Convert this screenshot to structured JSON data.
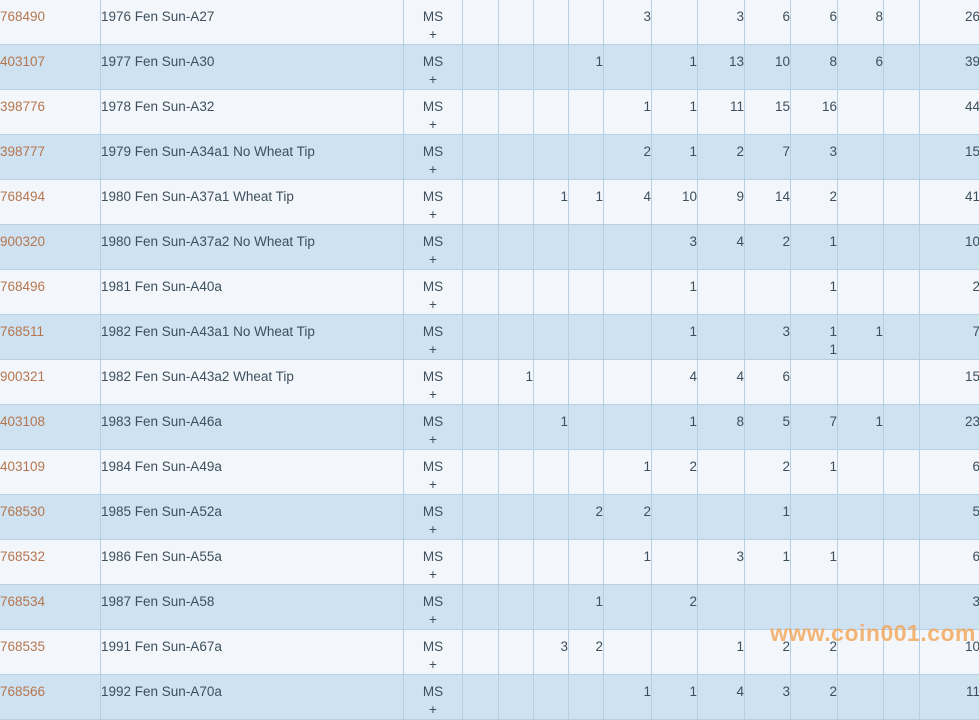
{
  "page": {
    "watermark_text": "www.coin001.com"
  },
  "colors": {
    "row_light_bg": "#f3f7fb",
    "row_dark_bg": "#cfe2f1",
    "grid_line": "#b7cfe3",
    "cert_link": "#b5764f",
    "body_text": "#3d4f5d",
    "watermark": "#f3a455"
  },
  "table": {
    "designation_label": "MS",
    "plus_label": "+",
    "grade_column_count": 11,
    "rows": [
      {
        "id": "768490",
        "description": "1976 Fen Sun-A27",
        "values": [
          "",
          "",
          "",
          "",
          "3",
          "",
          "3",
          "6",
          "6",
          "8",
          ""
        ],
        "total": "26"
      },
      {
        "id": "403107",
        "description": "1977 Fen Sun-A30",
        "values": [
          "",
          "",
          "",
          "1",
          "",
          "1",
          "13",
          "10",
          "8",
          "6",
          ""
        ],
        "total": "39"
      },
      {
        "id": "398776",
        "description": "1978 Fen Sun-A32",
        "values": [
          "",
          "",
          "",
          "",
          "1",
          "1",
          "11",
          "15",
          "16",
          "",
          ""
        ],
        "total": "44"
      },
      {
        "id": "398777",
        "description": "1979 Fen Sun-A34a1 No Wheat Tip",
        "values": [
          "",
          "",
          "",
          "",
          "2",
          "1",
          "2",
          "7",
          "3",
          "",
          ""
        ],
        "total": "15"
      },
      {
        "id": "768494",
        "description": "1980 Fen Sun-A37a1 Wheat Tip",
        "values": [
          "",
          "",
          "1",
          "1",
          "4",
          "10",
          "9",
          "14",
          "2",
          "",
          ""
        ],
        "total": "41"
      },
      {
        "id": "900320",
        "description": "1980 Fen Sun-A37a2 No Wheat Tip",
        "values": [
          "",
          "",
          "",
          "",
          "",
          "3",
          "4",
          "2",
          "1",
          "",
          ""
        ],
        "total": "10"
      },
      {
        "id": "768496",
        "description": "1981 Fen Sun-A40a",
        "values": [
          "",
          "",
          "",
          "",
          "",
          "1",
          "",
          "",
          "1",
          "",
          ""
        ],
        "total": "2"
      },
      {
        "id": "768511",
        "description": "1982 Fen Sun-A43a1 No Wheat Tip",
        "values": [
          "",
          "",
          "",
          "",
          "",
          "1",
          "",
          "3",
          "1",
          "1",
          ""
        ],
        "plus_values": [
          "",
          "",
          "",
          "",
          "",
          "",
          "",
          "",
          "1",
          "",
          ""
        ],
        "total": "7"
      },
      {
        "id": "900321",
        "description": "1982 Fen Sun-A43a2 Wheat Tip",
        "values": [
          "",
          "1",
          "",
          "",
          "",
          "4",
          "4",
          "6",
          "",
          "",
          ""
        ],
        "total": "15"
      },
      {
        "id": "403108",
        "description": "1983 Fen Sun-A46a",
        "values": [
          "",
          "",
          "1",
          "",
          "",
          "1",
          "8",
          "5",
          "7",
          "1",
          ""
        ],
        "total": "23"
      },
      {
        "id": "403109",
        "description": "1984 Fen Sun-A49a",
        "values": [
          "",
          "",
          "",
          "",
          "1",
          "2",
          "",
          "2",
          "1",
          "",
          ""
        ],
        "total": "6"
      },
      {
        "id": "768530",
        "description": "1985 Fen Sun-A52a",
        "values": [
          "",
          "",
          "",
          "2",
          "2",
          "",
          "",
          "1",
          "",
          "",
          ""
        ],
        "total": "5"
      },
      {
        "id": "768532",
        "description": "1986 Fen Sun-A55a",
        "values": [
          "",
          "",
          "",
          "",
          "1",
          "",
          "3",
          "1",
          "1",
          "",
          ""
        ],
        "total": "6"
      },
      {
        "id": "768534",
        "description": "1987 Fen Sun-A58",
        "values": [
          "",
          "",
          "",
          "1",
          "",
          "2",
          "",
          "",
          "",
          "",
          ""
        ],
        "total": "3"
      },
      {
        "id": "768535",
        "description": "1991 Fen Sun-A67a",
        "values": [
          "",
          "",
          "3",
          "2",
          "",
          "",
          "1",
          "2",
          "2",
          "",
          ""
        ],
        "total": "10"
      },
      {
        "id": "768566",
        "description": "1992 Fen Sun-A70a",
        "values": [
          "",
          "",
          "",
          "",
          "1",
          "1",
          "4",
          "3",
          "2",
          "",
          ""
        ],
        "total": "11"
      }
    ]
  }
}
